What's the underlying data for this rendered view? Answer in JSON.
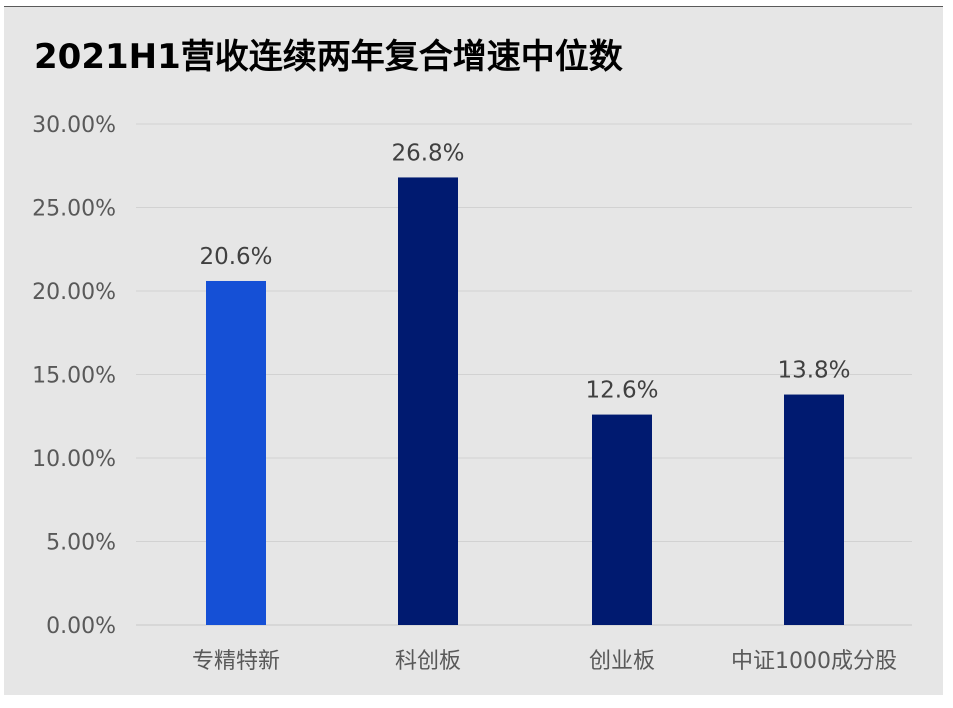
{
  "chart_data": {
    "type": "bar",
    "title": "2021H1营收连续两年复合增速中位数",
    "categories": [
      "专精特新",
      "科创板",
      "创业板",
      "中证1000成分股"
    ],
    "values": [
      20.6,
      26.8,
      12.6,
      13.8
    ],
    "value_labels": [
      "20.6%",
      "26.8%",
      "12.6%",
      "13.8%"
    ],
    "bar_colors": [
      "#1550d6",
      "#001a70",
      "#001a70",
      "#001a70"
    ],
    "ylim": [
      0,
      30
    ],
    "yticks": [
      0,
      5,
      10,
      15,
      20,
      25,
      30
    ],
    "ytick_labels": [
      "0.00%",
      "5.00%",
      "10.00%",
      "15.00%",
      "20.00%",
      "25.00%",
      "30.00%"
    ],
    "xlabel": "",
    "ylabel": "",
    "grid": true,
    "legend": false
  }
}
